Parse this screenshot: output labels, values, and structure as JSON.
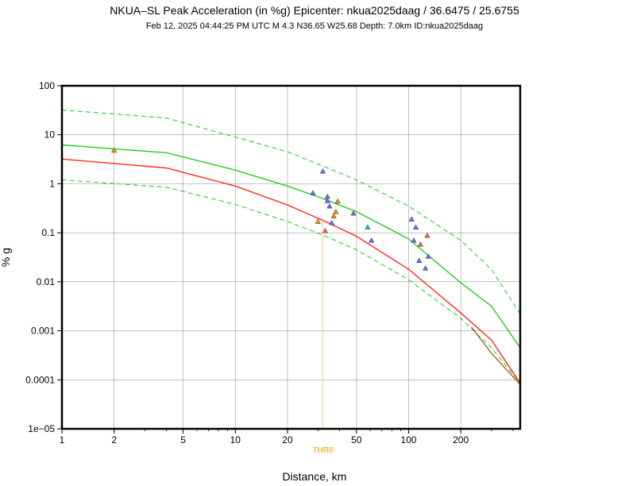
{
  "chart_data": {
    "type": "scatter",
    "title": "NKUA–SL Peak Acceleration (in %g) Epicenter: nkua2025daag / 36.6475 / 25.6755",
    "subtitle": "Feb 12, 2025 04:44:25 PM UTC   M 4.3   N36.65 W25.68   Depth: 7.0km   ID:nkua2025daag",
    "xlabel": "Distance, km",
    "ylabel": "% g",
    "x_scale": "log",
    "y_scale": "log",
    "xlim": [
      1,
      440
    ],
    "ylim": [
      1e-05,
      100
    ],
    "grid": true,
    "x_ticks": [
      {
        "value": 1,
        "label": "1"
      },
      {
        "value": 2,
        "label": "2"
      },
      {
        "value": 5,
        "label": "5"
      },
      {
        "value": 10,
        "label": "10"
      },
      {
        "value": 20,
        "label": "20"
      },
      {
        "value": 50,
        "label": "50"
      },
      {
        "value": 100,
        "label": "100"
      },
      {
        "value": 200,
        "label": "200"
      }
    ],
    "y_ticks": [
      {
        "value": 100,
        "label": "100"
      },
      {
        "value": 10,
        "label": "10"
      },
      {
        "value": 1,
        "label": "1"
      },
      {
        "value": 0.1,
        "label": "0.1"
      },
      {
        "value": 0.01,
        "label": "0.01"
      },
      {
        "value": 0.001,
        "label": "0.001"
      },
      {
        "value": 0.0001,
        "label": "0.0001"
      },
      {
        "value": 1e-05,
        "label": "1e−05"
      }
    ],
    "curves": [
      {
        "style": "dashed",
        "color": "#33cc33",
        "x": [
          1,
          4,
          10,
          20,
          32,
          50,
          100,
          200,
          300,
          440
        ],
        "y": [
          32,
          22,
          9,
          4.5,
          2.3,
          1.2,
          0.35,
          0.07,
          0.018,
          0.0022
        ]
      },
      {
        "style": "solid",
        "color": "#22cc22",
        "x": [
          1,
          4,
          10,
          20,
          32,
          50,
          100,
          200,
          300,
          440
        ],
        "y": [
          6.2,
          4.3,
          1.9,
          0.9,
          0.5,
          0.27,
          0.075,
          0.0095,
          0.0032,
          0.00045
        ]
      },
      {
        "style": "solid",
        "color": "#ff2a1a",
        "x": [
          1,
          4,
          10,
          20,
          32,
          50,
          100,
          200,
          300,
          440
        ],
        "y": [
          3.2,
          2.1,
          0.9,
          0.37,
          0.18,
          0.085,
          0.018,
          0.0023,
          0.00065,
          8.5e-05
        ]
      },
      {
        "style": "dashed",
        "color": "#33cc33",
        "x": [
          1,
          4,
          10,
          20,
          32,
          50,
          100,
          200,
          300,
          440
        ],
        "y": [
          1.2,
          0.85,
          0.38,
          0.17,
          0.09,
          0.045,
          0.011,
          0.0018,
          0.00045,
          8.5e-05
        ]
      },
      {
        "style": "solid",
        "color": "#a0663a",
        "x": [
          230,
          300,
          440
        ],
        "y": [
          0.0012,
          0.00035,
          8e-05
        ]
      }
    ],
    "points": [
      {
        "x": 2,
        "y": 4.8,
        "color": "#ff8c00"
      },
      {
        "x": 28,
        "y": 0.65,
        "color": "#6b6bff"
      },
      {
        "x": 32,
        "y": 1.8,
        "color": "#6b6bff"
      },
      {
        "x": 34,
        "y": 0.55,
        "color": "#6b6bff"
      },
      {
        "x": 34,
        "y": 0.45,
        "color": "#6b6bff"
      },
      {
        "x": 35,
        "y": 0.35,
        "color": "#6b6bff"
      },
      {
        "x": 36,
        "y": 0.16,
        "color": "#6b6bff"
      },
      {
        "x": 37,
        "y": 0.22,
        "color": "#ff8c00"
      },
      {
        "x": 38,
        "y": 0.27,
        "color": "#ff8c00"
      },
      {
        "x": 39,
        "y": 0.44,
        "color": "#ff8c00"
      },
      {
        "x": 30,
        "y": 0.17,
        "color": "#ff8c00"
      },
      {
        "x": 33,
        "y": 0.11,
        "color": "#ff6060"
      },
      {
        "x": 48,
        "y": 0.25,
        "color": "#6b6bff"
      },
      {
        "x": 58,
        "y": 0.13,
        "color": "#2fc4b0"
      },
      {
        "x": 61,
        "y": 0.07,
        "color": "#6b6bff"
      },
      {
        "x": 104,
        "y": 0.19,
        "color": "#6b6bff"
      },
      {
        "x": 107,
        "y": 0.07,
        "color": "#6b6bff"
      },
      {
        "x": 110,
        "y": 0.13,
        "color": "#6b6bff"
      },
      {
        "x": 115,
        "y": 0.027,
        "color": "#6b6bff"
      },
      {
        "x": 117,
        "y": 0.058,
        "color": "#ff6060"
      },
      {
        "x": 125,
        "y": 0.019,
        "color": "#6b6bff"
      },
      {
        "x": 128,
        "y": 0.088,
        "color": "#ff6060"
      },
      {
        "x": 130,
        "y": 0.033,
        "color": "#6b6bff"
      }
    ],
    "station_marker": {
      "label": "THR8",
      "x": 32,
      "y": 0.17,
      "color": "#ff9900"
    }
  }
}
